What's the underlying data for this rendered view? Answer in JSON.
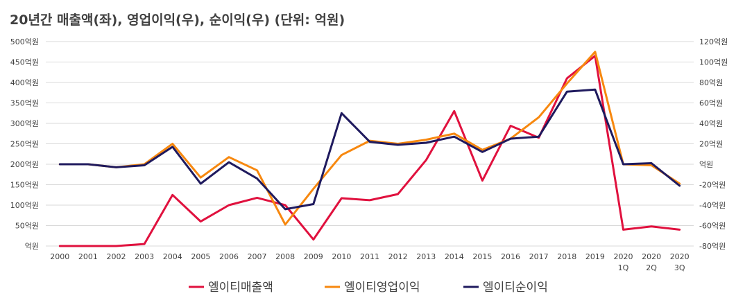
{
  "chart_data": {
    "type": "line",
    "title": "20년간 매출액(좌), 영업이익(우), 순이익(우) (단위: 억원)",
    "x": [
      "2000",
      "2001",
      "2002",
      "2003",
      "2004",
      "2005",
      "2006",
      "2007",
      "2008",
      "2009",
      "2010",
      "2011",
      "2012",
      "2013",
      "2014",
      "2015",
      "2016",
      "2017",
      "2018",
      "2019",
      "2020\n1Q",
      "2020\n2Q",
      "2020\n3Q"
    ],
    "y_left": {
      "ylim": [
        0,
        500
      ],
      "ticks": [
        0,
        50,
        100,
        150,
        200,
        250,
        300,
        350,
        400,
        450,
        500
      ],
      "tick_labels": [
        "억원",
        "50억원",
        "100억원",
        "150억원",
        "200억원",
        "250억원",
        "300억원",
        "350억원",
        "400억원",
        "450억원",
        "500억원"
      ]
    },
    "y_right": {
      "ylim": [
        -80,
        120
      ],
      "ticks": [
        -80,
        -60,
        -40,
        -20,
        0,
        20,
        40,
        60,
        80,
        100,
        120
      ],
      "tick_labels": [
        "-80억원",
        "-60억원",
        "-40억원",
        "-20억원",
        "억원",
        "20억원",
        "40억원",
        "60억원",
        "80억원",
        "100억원",
        "120억원"
      ]
    },
    "grid": true,
    "legend_position": "bottom",
    "series": [
      {
        "name": "엘이티매출액",
        "axis": "left",
        "color": "#e0113e",
        "values": [
          0,
          0,
          0,
          5,
          125,
          60,
          100,
          118,
          100,
          16,
          117,
          112,
          127,
          210,
          330,
          160,
          294,
          265,
          410,
          465,
          40,
          48,
          40
        ]
      },
      {
        "name": "엘이티영업이익",
        "axis": "right",
        "color": "#f7880f",
        "values": [
          0,
          0,
          -3,
          0,
          20,
          -13,
          7,
          -6,
          -59,
          -24,
          9,
          23,
          20,
          24,
          30,
          14,
          25,
          46,
          79,
          110,
          0,
          -1,
          -19
        ]
      },
      {
        "name": "엘이티순이익",
        "axis": "right",
        "color": "#1f1a5e",
        "values": [
          0,
          0,
          -3,
          -1,
          17,
          -19,
          2,
          -14,
          -44,
          -39,
          50,
          22,
          19,
          21,
          27,
          12,
          25,
          27,
          71,
          73,
          0,
          1,
          -21
        ]
      }
    ]
  }
}
